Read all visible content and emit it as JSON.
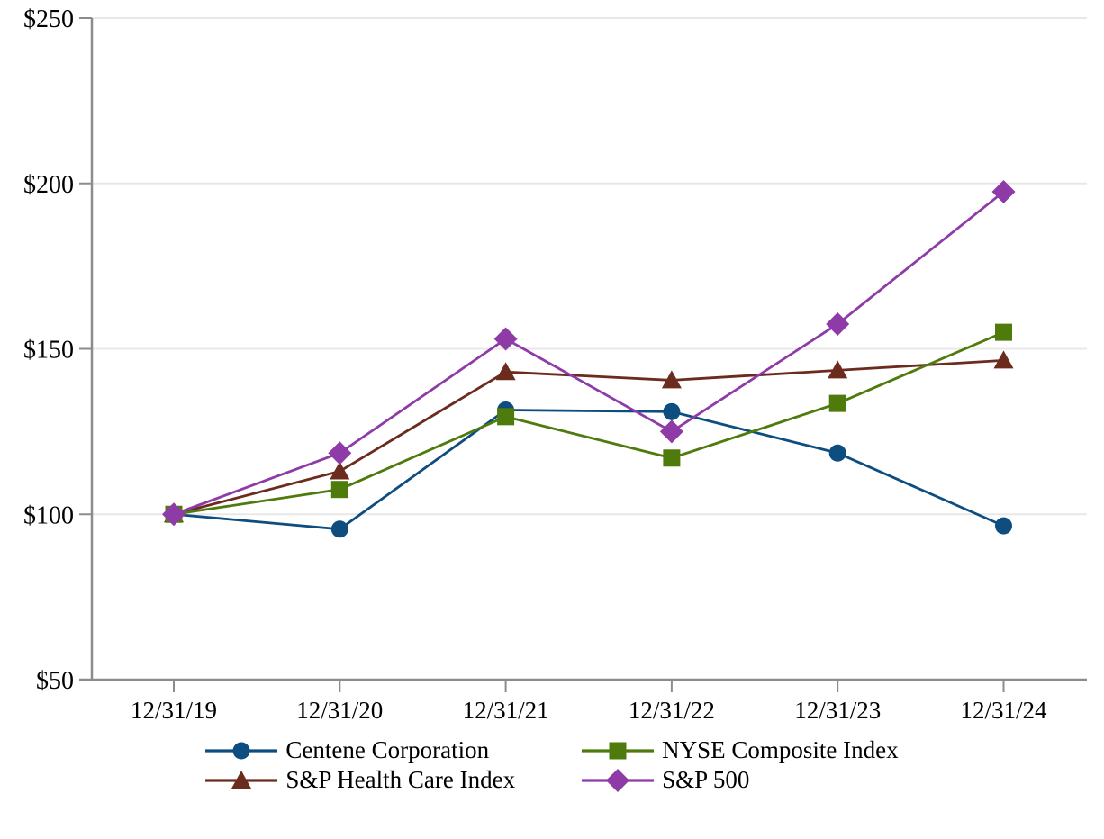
{
  "chart_data": {
    "type": "line",
    "title": "",
    "xlabel": "",
    "ylabel": "",
    "ylim": [
      50,
      250
    ],
    "grid": "horizontal",
    "legend_position": "bottom",
    "x_labels": [
      "12/31/19",
      "12/31/20",
      "12/31/21",
      "12/31/22",
      "12/31/23",
      "12/31/24"
    ],
    "y_ticks": [
      {
        "label": "$250",
        "value": 250
      },
      {
        "label": "$200",
        "value": 200
      },
      {
        "label": "$150",
        "value": 150
      },
      {
        "label": "$100",
        "value": 100
      },
      {
        "label": "$50",
        "value": 50
      }
    ],
    "series": [
      {
        "name": "Centene Corporation",
        "marker": "circle",
        "color": "#0E4D80",
        "values": [
          100,
          95.5,
          131.5,
          131,
          118.5,
          96.5
        ]
      },
      {
        "name": "S&P Health Care Index",
        "marker": "triangle",
        "color": "#6B2C1E",
        "values": [
          100,
          113,
          143,
          140.5,
          143.5,
          146.5
        ]
      },
      {
        "name": "NYSE Composite Index",
        "marker": "square",
        "color": "#4F7B0D",
        "values": [
          100,
          107.5,
          129.5,
          117,
          133.5,
          155
        ]
      },
      {
        "name": "S&P 500",
        "marker": "diamond",
        "color": "#8E3BA8",
        "values": [
          100,
          118.5,
          153,
          125,
          157.5,
          197.5
        ]
      }
    ],
    "legend_order": [
      0,
      2,
      1,
      3
    ]
  },
  "colors": {
    "axis": "#8C8C8C",
    "gridline": "#E8E8E8",
    "text": "#000000",
    "background": "#FFFFFF"
  }
}
